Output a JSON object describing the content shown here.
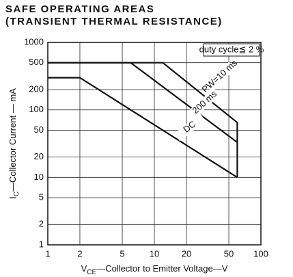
{
  "chart_data": {
    "type": "line",
    "title": "SAFE OPERATING AREAS",
    "subtitle": "(TRANSIENT THERMAL RESISTANCE)",
    "x_label": {
      "main": "V",
      "sub": "CE",
      "rest": "—Collector to Emitter Voltage—V"
    },
    "y_label": {
      "main": "I",
      "sub": "C",
      "rest": "—Collector Current — mA"
    },
    "annotation": "duty cycle≦ 2 %",
    "log_x": true,
    "log_y": true,
    "grid": true,
    "color": "#111111",
    "xlim": [
      1,
      100
    ],
    "xticks": [
      1,
      2,
      5,
      10,
      20,
      50,
      100
    ],
    "ylim": [
      1,
      1000
    ],
    "yticks": [
      1,
      2,
      5,
      10,
      20,
      50,
      100,
      200,
      500,
      1000
    ],
    "series": [
      {
        "name": "PW=10 ms",
        "x": [
          1,
          12,
          60,
          60
        ],
        "values": [
          500,
          500,
          65,
          10
        ]
      },
      {
        "name": "200 ms",
        "x": [
          1,
          6,
          60
        ],
        "values": [
          500,
          500,
          33
        ]
      },
      {
        "name": "DC",
        "x": [
          1,
          2,
          60
        ],
        "values": [
          300,
          300,
          10
        ]
      }
    ]
  }
}
